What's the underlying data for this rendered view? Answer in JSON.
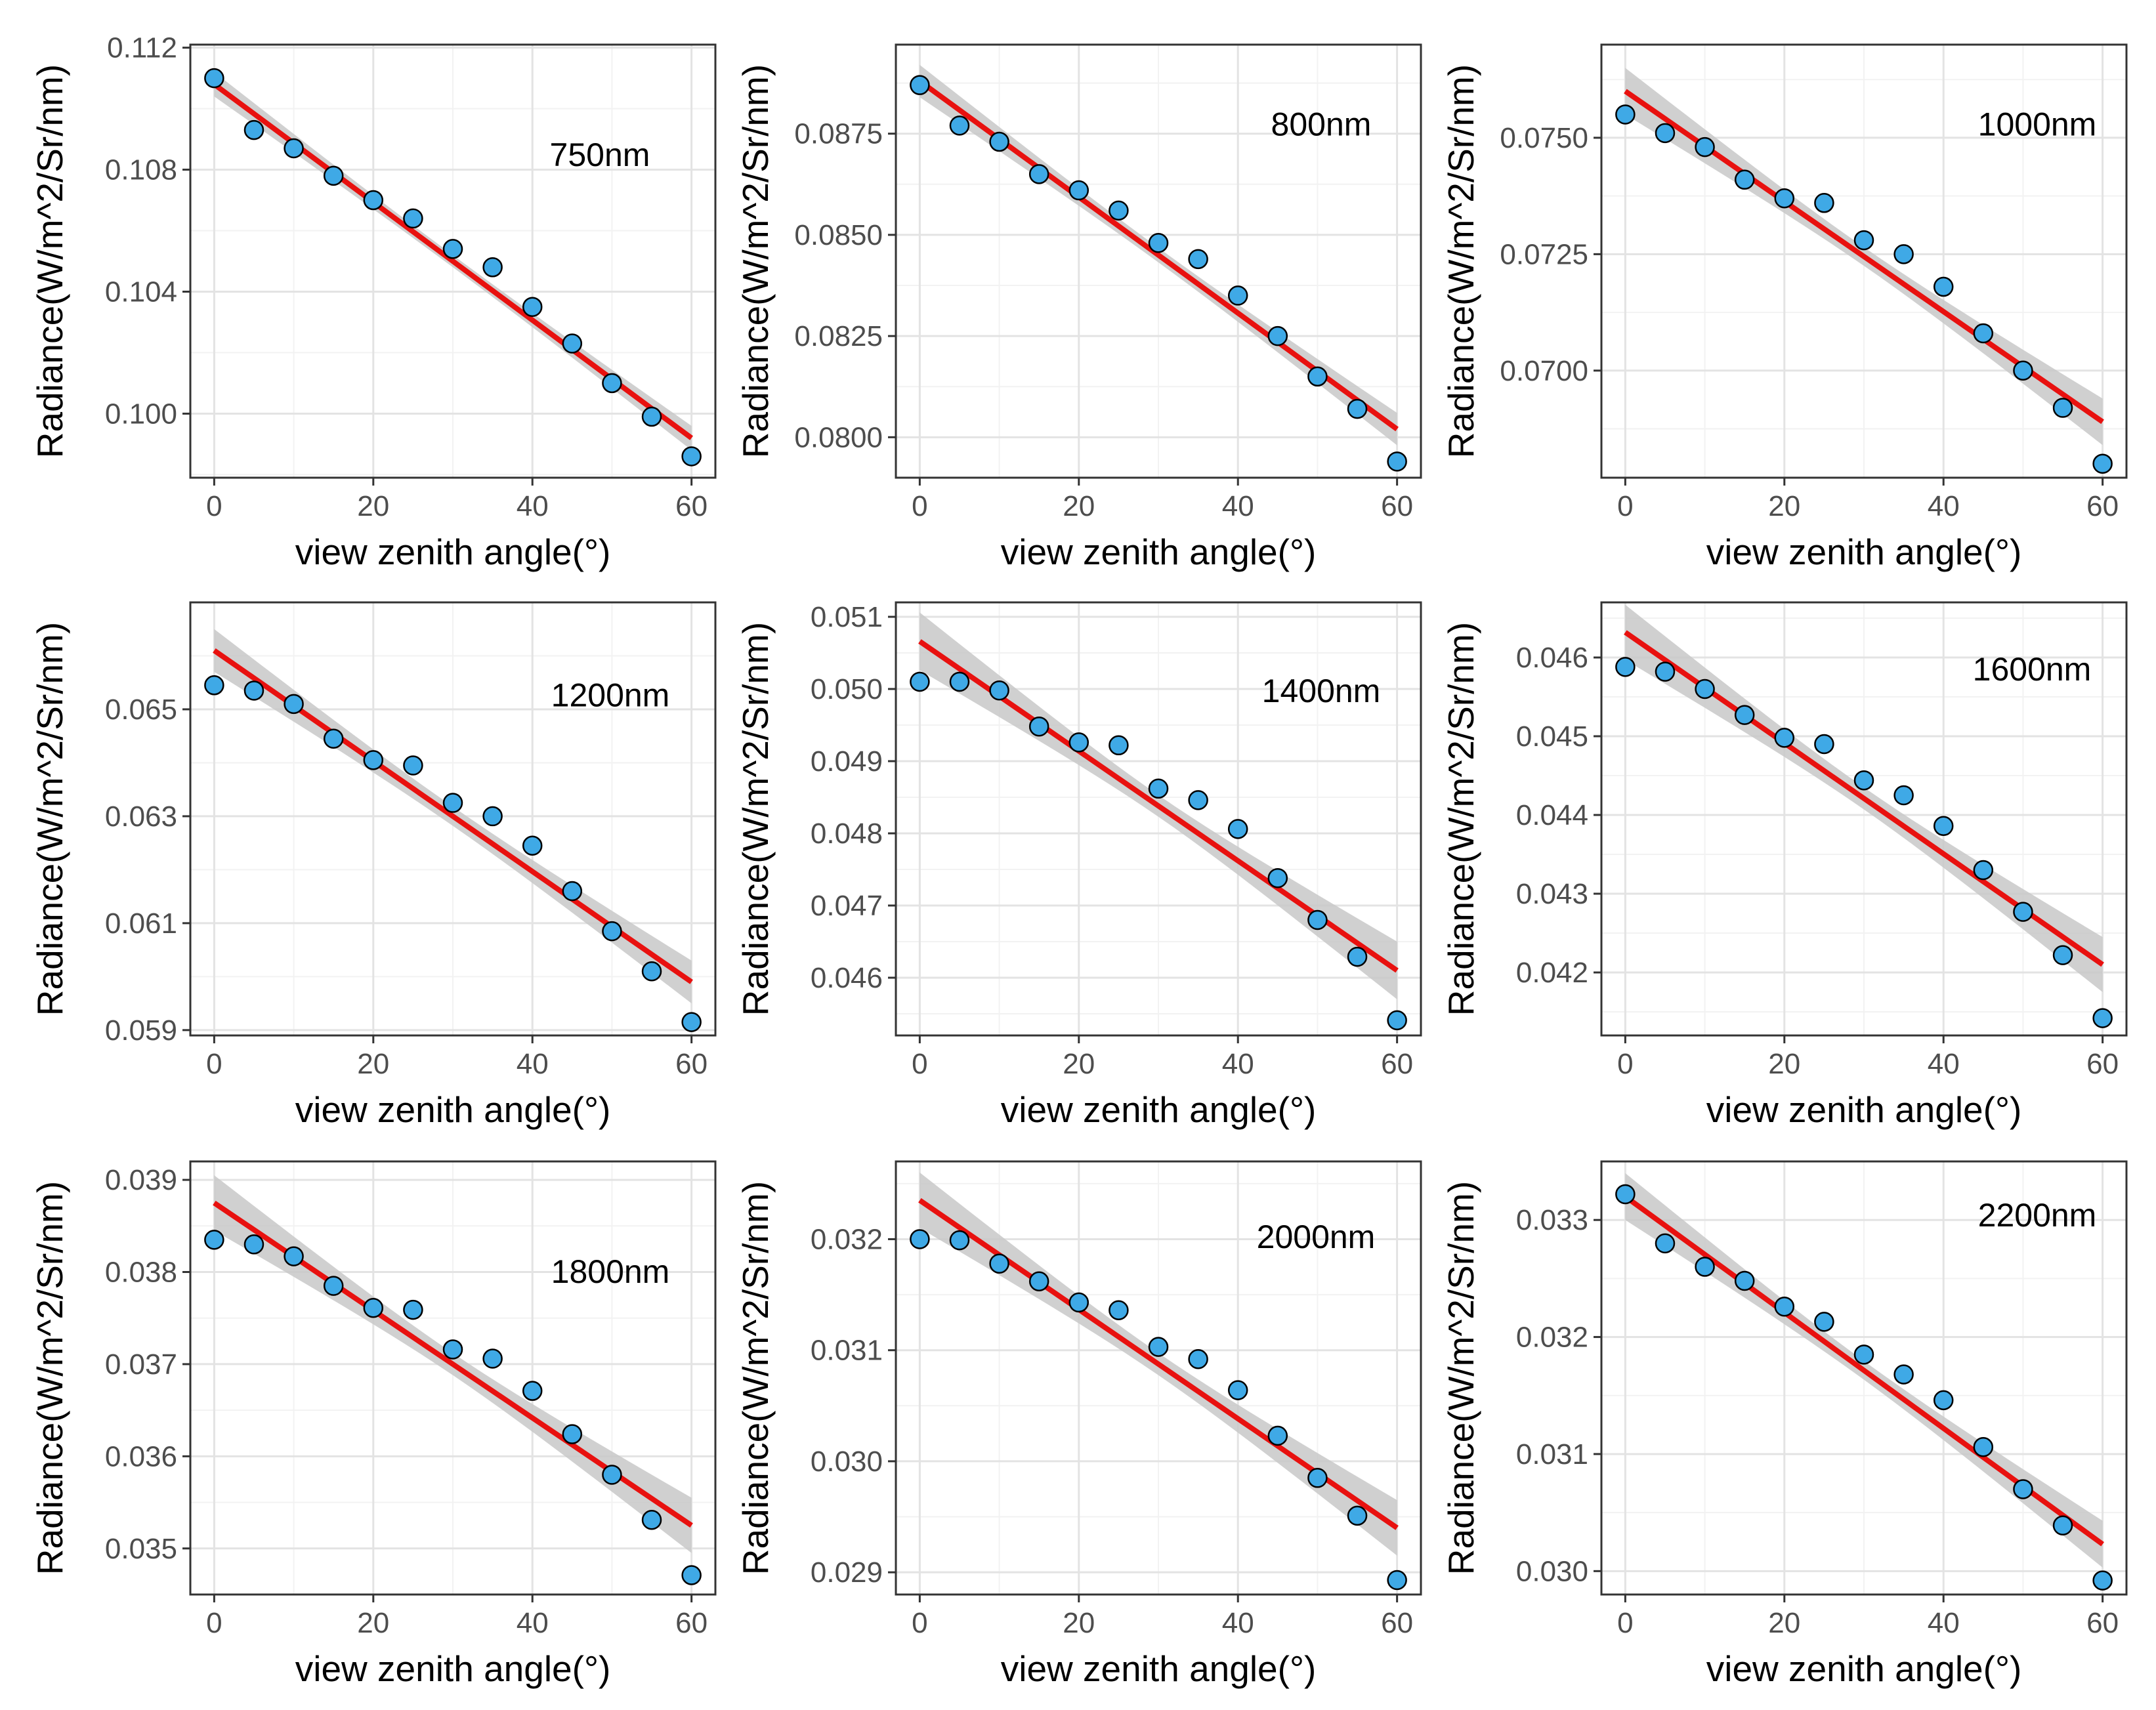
{
  "colors": {
    "point_fill": "#3fa9e6",
    "point_stroke": "#000000",
    "fit_line": "#e8110f",
    "confidence_band": "#c8c8c8",
    "grid_major": "#e3e3e3",
    "grid_minor": "#f2f2f2",
    "panel_border": "#333333",
    "tick_text": "#4d4d4d"
  },
  "chart_data": [
    {
      "type": "scatter",
      "label": "750nm",
      "xlabel": "view zenith angle(°)",
      "ylabel": "Radiance(W/m^2/Sr/nm)",
      "x": [
        0,
        5,
        10,
        15,
        20,
        25,
        30,
        35,
        40,
        45,
        50,
        55,
        60
      ],
      "y": [
        0.111,
        0.1093,
        0.1087,
        0.1078,
        0.107,
        0.1064,
        0.1054,
        0.1048,
        0.1035,
        0.1023,
        0.101,
        0.0999,
        0.0986
      ],
      "fit": {
        "y_at_0": 0.1108,
        "y_at_60": 0.0992,
        "band_at_0": 0.0004,
        "band_at_30": 0.0002,
        "band_at_60": 0.0004
      },
      "xlim": [
        -3,
        63
      ],
      "ylim": [
        0.0979,
        0.1121
      ],
      "x_ticks": [
        0,
        20,
        40,
        60
      ],
      "x_tick_labels": [
        "0",
        "20",
        "40",
        "60"
      ],
      "y_ticks": [
        0.1,
        0.104,
        0.108,
        0.112
      ],
      "y_tick_labels": [
        "0.100",
        "0.104",
        "0.108",
        "0.112"
      ]
    },
    {
      "type": "scatter",
      "label": "800nm",
      "xlabel": "view zenith angle(°)",
      "ylabel": "Radiance(W/m^2/Sr/nm)",
      "x": [
        0,
        5,
        10,
        15,
        20,
        25,
        30,
        35,
        40,
        45,
        50,
        55,
        60
      ],
      "y": [
        0.0887,
        0.0877,
        0.0873,
        0.0865,
        0.0861,
        0.0856,
        0.0848,
        0.0844,
        0.0835,
        0.0825,
        0.0815,
        0.0807,
        0.0794
      ],
      "fit": {
        "y_at_0": 0.0888,
        "y_at_60": 0.0802,
        "band_at_0": 0.0004,
        "band_at_30": 0.00018,
        "band_at_60": 0.0004
      },
      "xlim": [
        -3,
        63
      ],
      "ylim": [
        0.079,
        0.0897
      ],
      "x_ticks": [
        0,
        20,
        40,
        60
      ],
      "x_tick_labels": [
        "0",
        "20",
        "40",
        "60"
      ],
      "y_ticks": [
        0.08,
        0.0825,
        0.085,
        0.0875
      ],
      "y_tick_labels": [
        "0.0800",
        "0.0825",
        "0.0850",
        "0.0875"
      ]
    },
    {
      "type": "scatter",
      "label": "1000nm",
      "xlabel": "view zenith angle(°)",
      "ylabel": "Radiance(W/m^2/Sr/nm)",
      "x": [
        0,
        5,
        10,
        15,
        20,
        25,
        30,
        35,
        40,
        45,
        50,
        55,
        60
      ],
      "y": [
        0.0755,
        0.0751,
        0.0748,
        0.0741,
        0.0737,
        0.0736,
        0.0728,
        0.0725,
        0.0718,
        0.0708,
        0.07,
        0.0692,
        0.068
      ],
      "fit": {
        "y_at_0": 0.076,
        "y_at_60": 0.0689,
        "band_at_0": 0.0005,
        "band_at_30": 0.0002,
        "band_at_60": 0.0005
      },
      "xlim": [
        -3,
        63
      ],
      "ylim": [
        0.0677,
        0.077
      ],
      "x_ticks": [
        0,
        20,
        40,
        60
      ],
      "x_tick_labels": [
        "0",
        "20",
        "40",
        "60"
      ],
      "y_ticks": [
        0.07,
        0.0725,
        0.075
      ],
      "y_tick_labels": [
        "0.0700",
        "0.0725",
        "0.0750"
      ]
    },
    {
      "type": "scatter",
      "label": "1200nm",
      "xlabel": "view zenith angle(°)",
      "ylabel": "Radiance(W/m^2/Sr/nm)",
      "x": [
        0,
        5,
        10,
        15,
        20,
        25,
        30,
        35,
        40,
        45,
        50,
        55,
        60
      ],
      "y": [
        0.06545,
        0.06535,
        0.0651,
        0.06445,
        0.06405,
        0.06395,
        0.06325,
        0.063,
        0.06245,
        0.0616,
        0.06085,
        0.0601,
        0.05915
      ],
      "fit": {
        "y_at_0": 0.0661,
        "y_at_60": 0.0599,
        "band_at_0": 0.0004,
        "band_at_30": 0.00018,
        "band_at_60": 0.0004
      },
      "xlim": [
        -3,
        63
      ],
      "ylim": [
        0.0589,
        0.067
      ],
      "x_ticks": [
        0,
        20,
        40,
        60
      ],
      "x_tick_labels": [
        "0",
        "20",
        "40",
        "60"
      ],
      "y_ticks": [
        0.059,
        0.061,
        0.063,
        0.065
      ],
      "y_tick_labels": [
        "0.059",
        "0.061",
        "0.063",
        "0.065"
      ]
    },
    {
      "type": "scatter",
      "label": "1400nm",
      "xlabel": "view zenith angle(°)",
      "ylabel": "Radiance(W/m^2/Sr/nm)",
      "x": [
        0,
        5,
        10,
        15,
        20,
        25,
        30,
        35,
        40,
        45,
        50,
        55,
        60
      ],
      "y": [
        0.0501,
        0.0501,
        0.04998,
        0.04948,
        0.04926,
        0.04922,
        0.04862,
        0.04846,
        0.04806,
        0.04738,
        0.0468,
        0.04629,
        0.04541
      ],
      "fit": {
        "y_at_0": 0.05066,
        "y_at_60": 0.0461,
        "band_at_0": 0.0004,
        "band_at_30": 0.00015,
        "band_at_60": 0.0004
      },
      "xlim": [
        -3,
        63
      ],
      "ylim": [
        0.0452,
        0.0512
      ],
      "x_ticks": [
        0,
        20,
        40,
        60
      ],
      "x_tick_labels": [
        "0",
        "20",
        "40",
        "60"
      ],
      "y_ticks": [
        0.046,
        0.047,
        0.048,
        0.049,
        0.05,
        0.051
      ],
      "y_tick_labels": [
        "0.046",
        "0.047",
        "0.048",
        "0.049",
        "0.050",
        "0.051"
      ]
    },
    {
      "type": "scatter",
      "label": "1600nm",
      "xlabel": "view zenith angle(°)",
      "ylabel": "Radiance(W/m^2/Sr/nm)",
      "x": [
        0,
        5,
        10,
        15,
        20,
        25,
        30,
        35,
        40,
        45,
        50,
        55,
        60
      ],
      "y": [
        0.04588,
        0.04582,
        0.0456,
        0.04527,
        0.04498,
        0.0449,
        0.04444,
        0.04425,
        0.04386,
        0.0433,
        0.04277,
        0.04222,
        0.04142
      ],
      "fit": {
        "y_at_0": 0.04632,
        "y_at_60": 0.0421,
        "band_at_0": 0.00035,
        "band_at_30": 0.00014,
        "band_at_60": 0.00035
      },
      "xlim": [
        -3,
        63
      ],
      "ylim": [
        0.0412,
        0.0467
      ],
      "x_ticks": [
        0,
        20,
        40,
        60
      ],
      "x_tick_labels": [
        "0",
        "20",
        "40",
        "60"
      ],
      "y_ticks": [
        0.042,
        0.043,
        0.044,
        0.045,
        0.046
      ],
      "y_tick_labels": [
        "0.042",
        "0.043",
        "0.044",
        "0.045",
        "0.046"
      ]
    },
    {
      "type": "scatter",
      "label": "1800nm",
      "xlabel": "view zenith angle(°)",
      "ylabel": "Radiance(W/m^2/Sr/nm)",
      "x": [
        0,
        5,
        10,
        15,
        20,
        25,
        30,
        35,
        40,
        45,
        50,
        55,
        60
      ],
      "y": [
        0.03835,
        0.0383,
        0.03817,
        0.03785,
        0.03761,
        0.03759,
        0.03716,
        0.03706,
        0.03671,
        0.03624,
        0.0358,
        0.03531,
        0.03471
      ],
      "fit": {
        "y_at_0": 0.03875,
        "y_at_60": 0.03525,
        "band_at_0": 0.0003,
        "band_at_30": 0.00012,
        "band_at_60": 0.0003
      },
      "xlim": [
        -3,
        63
      ],
      "ylim": [
        0.0345,
        0.0392
      ],
      "x_ticks": [
        0,
        20,
        40,
        60
      ],
      "x_tick_labels": [
        "0",
        "20",
        "40",
        "60"
      ],
      "y_ticks": [
        0.035,
        0.036,
        0.037,
        0.038,
        0.039
      ],
      "y_tick_labels": [
        "0.035",
        "0.036",
        "0.037",
        "0.038",
        "0.039"
      ]
    },
    {
      "type": "scatter",
      "label": "2000nm",
      "xlabel": "view zenith angle(°)",
      "ylabel": "Radiance(W/m^2/Sr/nm)",
      "x": [
        0,
        5,
        10,
        15,
        20,
        25,
        30,
        35,
        40,
        45,
        50,
        55,
        60
      ],
      "y": [
        0.032,
        0.03199,
        0.03178,
        0.03162,
        0.03143,
        0.03136,
        0.03103,
        0.03092,
        0.03064,
        0.03023,
        0.02985,
        0.02951,
        0.02893
      ],
      "fit": {
        "y_at_0": 0.03235,
        "y_at_60": 0.0294,
        "band_at_0": 0.00025,
        "band_at_30": 0.0001,
        "band_at_60": 0.00025
      },
      "xlim": [
        -3,
        63
      ],
      "ylim": [
        0.0288,
        0.0327
      ],
      "x_ticks": [
        0,
        20,
        40,
        60
      ],
      "x_tick_labels": [
        "0",
        "20",
        "40",
        "60"
      ],
      "y_ticks": [
        0.029,
        0.03,
        0.031,
        0.032
      ],
      "y_tick_labels": [
        "0.029",
        "0.030",
        "0.031",
        "0.032"
      ]
    },
    {
      "type": "scatter",
      "label": "2200nm",
      "xlabel": "view zenith angle(°)",
      "ylabel": "Radiance(W/m^2/Sr/nm)",
      "x": [
        0,
        5,
        10,
        15,
        20,
        25,
        30,
        35,
        40,
        45,
        50,
        55,
        60
      ],
      "y": [
        0.03322,
        0.0328,
        0.0326,
        0.03248,
        0.03226,
        0.03213,
        0.03185,
        0.03168,
        0.03146,
        0.03106,
        0.0307,
        0.03039,
        0.02992
      ],
      "fit": {
        "y_at_0": 0.0332,
        "y_at_60": 0.03023,
        "band_at_0": 0.0002,
        "band_at_30": 8e-05,
        "band_at_60": 0.0002
      },
      "xlim": [
        -3,
        63
      ],
      "ylim": [
        0.0298,
        0.0335
      ],
      "x_ticks": [
        0,
        20,
        40,
        60
      ],
      "x_tick_labels": [
        "0",
        "20",
        "40",
        "60"
      ],
      "y_ticks": [
        0.03,
        0.031,
        0.032,
        0.033
      ],
      "y_tick_labels": [
        "0.030",
        "0.031",
        "0.032",
        "0.033"
      ]
    }
  ]
}
